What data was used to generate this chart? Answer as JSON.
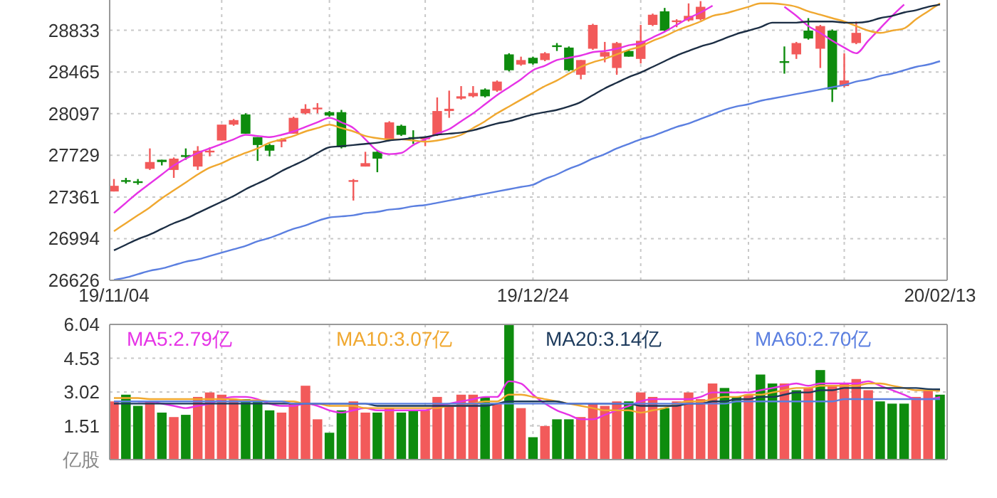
{
  "chart_data": [
    {
      "type": "candlestick",
      "categories": [
        "19/11/04",
        null,
        null,
        null,
        null,
        null,
        null,
        null,
        null,
        null,
        null,
        null,
        null,
        null,
        null,
        null,
        null,
        null,
        null,
        null,
        null,
        null,
        null,
        null,
        null,
        null,
        null,
        null,
        null,
        null,
        null,
        null,
        null,
        null,
        null,
        "19/12/24",
        null,
        null,
        null,
        null,
        null,
        null,
        null,
        null,
        null,
        null,
        null,
        null,
        null,
        null,
        null,
        null,
        null,
        null,
        null,
        null,
        null,
        null,
        null,
        null,
        null,
        null,
        null,
        null,
        null,
        null,
        null,
        null,
        null,
        "20/02/13"
      ],
      "ohlc": [
        [
          27410,
          27520,
          27410,
          27460
        ],
        [
          27510,
          27530,
          27480,
          27500
        ],
        [
          27500,
          27520,
          27470,
          27490
        ],
        [
          27610,
          27790,
          27600,
          27670
        ],
        [
          27690,
          27690,
          27640,
          27670
        ],
        [
          27600,
          27710,
          27530,
          27700
        ],
        [
          27730,
          27790,
          27690,
          27720
        ],
        [
          27630,
          27810,
          27600,
          27770
        ],
        [
          27760,
          27800,
          27720,
          27770
        ],
        [
          27860,
          28000,
          27860,
          28000
        ],
        [
          28000,
          28050,
          27990,
          28040
        ],
        [
          28090,
          28100,
          27920,
          27920
        ],
        [
          27890,
          27890,
          27680,
          27820
        ],
        [
          27820,
          27830,
          27720,
          27770
        ],
        [
          27850,
          27880,
          27800,
          27870
        ],
        [
          27920,
          28070,
          27920,
          28060
        ],
        [
          28100,
          28180,
          28090,
          28140
        ],
        [
          28140,
          28190,
          28100,
          28150
        ],
        [
          28110,
          28120,
          28070,
          28080
        ],
        [
          28110,
          28130,
          27790,
          27800
        ],
        [
          27500,
          27520,
          27330,
          27510
        ],
        [
          27630,
          27760,
          27630,
          27660
        ],
        [
          27760,
          27770,
          27580,
          27700
        ],
        [
          27870,
          28030,
          27870,
          28020
        ],
        [
          27990,
          28000,
          27900,
          27910
        ],
        [
          27890,
          27950,
          27830,
          27880
        ],
        [
          27870,
          27890,
          27810,
          27890
        ],
        [
          27910,
          28240,
          27900,
          28120
        ],
        [
          28120,
          28300,
          28060,
          28140
        ],
        [
          28230,
          28340,
          28220,
          28250
        ],
        [
          28250,
          28340,
          28240,
          28280
        ],
        [
          28310,
          28320,
          28240,
          28250
        ],
        [
          28300,
          28390,
          28290,
          28380
        ],
        [
          28620,
          28630,
          28470,
          28480
        ],
        [
          28530,
          28600,
          28520,
          28570
        ],
        [
          28590,
          28600,
          28530,
          28540
        ],
        [
          28570,
          28640,
          28560,
          28630
        ],
        [
          28700,
          28720,
          28650,
          28690
        ],
        [
          28680,
          28690,
          28470,
          28480
        ],
        [
          28440,
          28570,
          28400,
          28570
        ],
        [
          28670,
          28890,
          28660,
          28880
        ],
        [
          28600,
          28730,
          28550,
          28640
        ],
        [
          28500,
          28730,
          28440,
          28720
        ],
        [
          28650,
          28660,
          28600,
          28600
        ],
        [
          28580,
          28880,
          28540,
          28740
        ],
        [
          28880,
          28980,
          28870,
          28970
        ],
        [
          29000,
          29030,
          28820,
          28830
        ],
        [
          28910,
          28930,
          28860,
          28920
        ],
        [
          28920,
          29070,
          28910,
          28960
        ],
        [
          28930,
          29090,
          28920,
          29040
        ],
        null,
        null,
        null,
        null,
        null,
        null,
        [
          28560,
          28690,
          28450,
          28550
        ],
        [
          28620,
          28730,
          28580,
          28720
        ],
        [
          28830,
          28940,
          28750,
          28760
        ],
        [
          28670,
          28880,
          28500,
          28870
        ],
        [
          28830,
          28840,
          28200,
          28310
        ],
        [
          28340,
          28630,
          28330,
          28390
        ],
        [
          28720,
          28910,
          28710,
          28810
        ],
        null,
        null,
        null,
        null,
        null,
        null,
        null
      ],
      "colors": [
        "#f25a5a",
        "#0e8c0e",
        "#0e8c0e",
        "#f25a5a",
        "#0e8c0e",
        "#f25a5a",
        "#0e8c0e",
        "#f25a5a",
        "#f25a5a",
        "#f25a5a",
        "#f25a5a",
        "#0e8c0e",
        "#0e8c0e",
        "#0e8c0e",
        "#f25a5a",
        "#f25a5a",
        "#f25a5a",
        "#f25a5a",
        "#0e8c0e",
        "#0e8c0e",
        "#f25a5a",
        "#f25a5a",
        "#0e8c0e",
        "#f25a5a",
        "#0e8c0e",
        "#0e8c0e",
        "#f25a5a",
        "#f25a5a",
        "#f25a5a",
        "#f25a5a",
        "#f25a5a",
        "#0e8c0e",
        "#f25a5a",
        "#0e8c0e",
        "#f25a5a",
        "#0e8c0e",
        "#f25a5a",
        "#0e8c0e",
        "#0e8c0e",
        "#f25a5a",
        "#f25a5a",
        "#f25a5a",
        "#f25a5a",
        "#0e8c0e",
        "#f25a5a",
        "#f25a5a",
        "#0e8c0e",
        "#f25a5a",
        "#f25a5a",
        "#f25a5a",
        null,
        null,
        null,
        null,
        null,
        null,
        "#0e8c0e",
        "#f25a5a",
        "#0e8c0e",
        "#f25a5a",
        "#0e8c0e",
        "#f25a5a",
        "#f25a5a",
        null,
        null,
        null,
        null,
        null,
        null,
        null
      ],
      "series": [
        {
          "type": "line",
          "color": "#e633e6",
          "values": [
            27220,
            27310,
            27400,
            27480,
            27560,
            27640,
            27700,
            27750,
            27790,
            27830,
            27870,
            27910,
            27900,
            27890,
            27910,
            27940,
            27980,
            28020,
            28060,
            28020,
            27970,
            27870,
            27770,
            27740,
            27750,
            27820,
            27870,
            27920,
            27960,
            28030,
            28100,
            28180,
            28260,
            28330,
            28400,
            28480,
            28520,
            28570,
            28590,
            28610,
            28640,
            28650,
            28670,
            28700,
            28720,
            28770,
            28820,
            28880,
            28940,
            28990,
            29050,
            null,
            null,
            null,
            null,
            null,
            29040,
            28960,
            28870,
            28810,
            28740,
            28680,
            28630,
            28740,
            28850,
            28960,
            29060,
            null,
            null,
            null
          ]
        },
        {
          "type": "line",
          "color": "#f0a830",
          "values": [
            27060,
            27130,
            27200,
            27270,
            27350,
            27420,
            27490,
            27560,
            27620,
            27660,
            27710,
            27750,
            27790,
            27840,
            27870,
            27900,
            27940,
            27970,
            28000,
            27970,
            27940,
            27900,
            27880,
            27870,
            27870,
            27860,
            27850,
            27860,
            27880,
            27910,
            27970,
            28030,
            28100,
            28160,
            28220,
            28280,
            28340,
            28390,
            28450,
            28510,
            28550,
            28580,
            28620,
            28660,
            28690,
            28740,
            28780,
            28830,
            28870,
            28910,
            28960,
            28980,
            29010,
            29040,
            29070,
            29070,
            29060,
            29040,
            29000,
            28970,
            28940,
            28910,
            28870,
            28830,
            28810,
            28830,
            28850,
            28930,
            29000,
            29070
          ]
        },
        {
          "type": "line",
          "color": "#1c2e44",
          "values": [
            26890,
            26940,
            26990,
            27030,
            27080,
            27130,
            27170,
            27220,
            27270,
            27320,
            27370,
            27430,
            27480,
            27530,
            27590,
            27640,
            27690,
            27750,
            27800,
            27810,
            27820,
            27830,
            27840,
            27860,
            27870,
            27880,
            27890,
            27910,
            27920,
            27930,
            27950,
            27980,
            28010,
            28030,
            28060,
            28090,
            28110,
            28130,
            28160,
            28200,
            28260,
            28320,
            28370,
            28420,
            28460,
            28510,
            28560,
            28610,
            28650,
            28690,
            28720,
            28760,
            28800,
            28830,
            28860,
            28900,
            28900,
            28900,
            28910,
            28910,
            28910,
            28900,
            28900,
            28910,
            28940,
            28960,
            28990,
            29010,
            29040,
            29060
          ]
        },
        {
          "type": "line",
          "color": "#5b7fe0",
          "values": [
            26630,
            26650,
            26680,
            26710,
            26730,
            26760,
            26790,
            26810,
            26840,
            26870,
            26900,
            26930,
            26970,
            27000,
            27040,
            27080,
            27110,
            27150,
            27180,
            27190,
            27200,
            27220,
            27230,
            27250,
            27260,
            27280,
            27290,
            27310,
            27330,
            27350,
            27370,
            27390,
            27410,
            27430,
            27450,
            27470,
            27520,
            27560,
            27610,
            27650,
            27700,
            27740,
            27790,
            27830,
            27870,
            27900,
            27940,
            27980,
            28010,
            28050,
            28090,
            28130,
            28160,
            28180,
            28210,
            28230,
            28250,
            28270,
            28290,
            28310,
            28330,
            28350,
            28380,
            28400,
            28430,
            28450,
            28480,
            28510,
            28530,
            28560
          ]
        }
      ],
      "ylim": [
        26626,
        29100
      ],
      "yticks": [
        26626,
        26994,
        27361,
        27729,
        28097,
        28465,
        28833
      ],
      "grid": true
    },
    {
      "type": "bar",
      "categories": [
        null,
        null,
        null,
        null,
        null,
        null,
        null,
        null,
        null,
        null,
        null,
        null,
        null,
        null,
        null,
        null,
        null,
        null,
        null,
        null,
        null,
        null,
        null,
        null,
        null,
        null,
        null,
        null,
        null,
        null,
        null,
        null,
        null,
        null,
        null,
        null,
        null,
        null,
        null,
        null,
        null,
        null,
        null,
        null,
        null,
        null,
        null,
        null,
        null,
        null,
        null,
        null,
        null,
        null,
        null,
        null,
        null,
        null,
        null,
        null,
        null,
        null,
        null,
        null,
        null,
        null,
        null,
        null,
        null,
        null
      ],
      "tick_labels": "y",
      "series": [
        {
          "type": "bar",
          "values": [
            2.6,
            2.9,
            2.4,
            2.6,
            2.1,
            1.9,
            2.0,
            2.8,
            3.0,
            2.9,
            2.7,
            2.7,
            2.6,
            2.2,
            2.1,
            2.5,
            3.3,
            1.8,
            1.2,
            2.2,
            2.6,
            2.1,
            2.1,
            2.3,
            2.1,
            2.2,
            2.2,
            2.8,
            2.4,
            2.9,
            2.9,
            2.8,
            2.5,
            6.04,
            2.3,
            1.0,
            1.5,
            1.8,
            1.8,
            1.9,
            2.5,
            2.4,
            2.6,
            2.6,
            3.0,
            2.8,
            2.3,
            2.6,
            3.0,
            2.7,
            3.4,
            3.2,
            2.8,
            2.9,
            3.8,
            3.4,
            3.4,
            3.1,
            3.2,
            4.0,
            3.3,
            3.4,
            3.6,
            3.1,
            2.6,
            2.5,
            2.5,
            2.8,
            3.1,
            2.9
          ],
          "colors": [
            "#f25a5a",
            "#0e8c0e",
            "#0e8c0e",
            "#f25a5a",
            "#0e8c0e",
            "#f25a5a",
            "#0e8c0e",
            "#f25a5a",
            "#f25a5a",
            "#f25a5a",
            "#f25a5a",
            "#0e8c0e",
            "#0e8c0e",
            "#0e8c0e",
            "#f25a5a",
            "#f25a5a",
            "#f25a5a",
            "#f25a5a",
            "#0e8c0e",
            "#0e8c0e",
            "#f25a5a",
            "#f25a5a",
            "#0e8c0e",
            "#f25a5a",
            "#0e8c0e",
            "#0e8c0e",
            "#f25a5a",
            "#f25a5a",
            "#f25a5a",
            "#f25a5a",
            "#f25a5a",
            "#0e8c0e",
            "#f25a5a",
            "#0e8c0e",
            "#f25a5a",
            "#0e8c0e",
            "#f25a5a",
            "#0e8c0e",
            "#0e8c0e",
            "#f25a5a",
            "#f25a5a",
            "#f25a5a",
            "#f25a5a",
            "#0e8c0e",
            "#f25a5a",
            "#f25a5a",
            "#0e8c0e",
            "#f25a5a",
            "#f25a5a",
            "#f25a5a",
            "#f25a5a",
            "#0e8c0e",
            "#0e8c0e",
            "#f25a5a",
            "#0e8c0e",
            "#0e8c0e",
            "#f25a5a",
            "#0e8c0e",
            "#f25a5a",
            "#0e8c0e",
            "#f25a5a",
            "#f25a5a",
            "#f25a5a",
            "#f25a5a",
            "#0e8c0e",
            "#0e8c0e",
            "#0e8c0e",
            "#f25a5a",
            "#f25a5a",
            "#0e8c0e"
          ]
        },
        {
          "type": "line",
          "name": "MA5:2.79亿",
          "color": "#e633e6",
          "values": [
            null,
            null,
            2.6,
            2.6,
            2.5,
            2.4,
            2.3,
            2.4,
            2.5,
            2.7,
            2.8,
            2.8,
            2.7,
            2.5,
            2.4,
            2.4,
            2.5,
            2.4,
            2.2,
            2.1,
            2.2,
            2.3,
            2.2,
            2.2,
            2.2,
            2.2,
            2.2,
            2.4,
            2.5,
            2.6,
            2.7,
            2.8,
            2.8,
            3.5,
            3.4,
            2.9,
            2.5,
            2.2,
            2.0,
            1.8,
            1.8,
            2.0,
            2.2,
            2.4,
            2.6,
            2.7,
            2.7,
            2.7,
            2.7,
            2.8,
            3.0,
            3.0,
            3.0,
            3.0,
            3.1,
            3.2,
            3.3,
            3.4,
            3.3,
            3.4,
            3.4,
            3.4,
            3.4,
            3.5,
            3.3,
            3.1,
            2.9,
            2.7,
            2.7,
            2.79
          ]
        },
        {
          "type": "line",
          "name": "MA10:3.07亿",
          "color": "#f0a830",
          "values": [
            2.75,
            2.75,
            2.75,
            2.7,
            2.7,
            2.7,
            2.7,
            2.7,
            2.7,
            2.7,
            2.7,
            2.65,
            2.65,
            2.6,
            2.6,
            2.6,
            2.5,
            2.5,
            2.4,
            2.4,
            2.4,
            2.3,
            2.3,
            2.3,
            2.3,
            2.3,
            2.3,
            2.3,
            2.4,
            2.4,
            2.5,
            2.6,
            2.6,
            2.9,
            2.9,
            2.8,
            2.7,
            2.6,
            2.5,
            2.4,
            2.3,
            2.2,
            2.2,
            2.2,
            2.1,
            2.2,
            2.3,
            2.5,
            2.6,
            2.6,
            2.7,
            2.8,
            2.8,
            2.9,
            2.9,
            3.0,
            3.1,
            3.2,
            3.2,
            3.3,
            3.3,
            3.3,
            3.3,
            3.4,
            3.4,
            3.3,
            3.2,
            3.1,
            3.1,
            3.07
          ]
        },
        {
          "type": "line",
          "name": "MA20:3.14亿",
          "color": "#1c3a5c",
          "values": [
            2.5,
            2.5,
            2.5,
            2.5,
            2.5,
            2.5,
            2.5,
            2.5,
            2.5,
            2.5,
            2.5,
            2.5,
            2.5,
            2.5,
            2.5,
            2.5,
            2.5,
            2.5,
            2.5,
            2.5,
            2.5,
            2.5,
            2.4,
            2.4,
            2.4,
            2.4,
            2.4,
            2.4,
            2.4,
            2.4,
            2.4,
            2.4,
            2.5,
            2.6,
            2.6,
            2.6,
            2.6,
            2.6,
            2.5,
            2.5,
            2.5,
            2.5,
            2.5,
            2.5,
            2.4,
            2.4,
            2.4,
            2.4,
            2.5,
            2.5,
            2.6,
            2.6,
            2.7,
            2.7,
            2.8,
            2.8,
            2.9,
            3.0,
            3.0,
            3.1,
            3.1,
            3.2,
            3.2,
            3.2,
            3.2,
            3.2,
            3.2,
            3.2,
            3.15,
            3.14
          ]
        },
        {
          "type": "line",
          "name": "MA60:2.70亿",
          "color": "#5b7fe0",
          "values": [
            2.6,
            2.6,
            2.6,
            2.6,
            2.6,
            2.6,
            2.6,
            2.6,
            2.6,
            2.6,
            2.6,
            2.6,
            2.6,
            2.6,
            2.6,
            2.5,
            2.5,
            2.5,
            2.5,
            2.5,
            2.5,
            2.5,
            2.5,
            2.5,
            2.5,
            2.5,
            2.5,
            2.5,
            2.5,
            2.5,
            2.5,
            2.5,
            2.5,
            2.5,
            2.5,
            2.5,
            2.5,
            2.5,
            2.5,
            2.5,
            2.5,
            2.5,
            2.5,
            2.5,
            2.5,
            2.5,
            2.5,
            2.5,
            2.5,
            2.5,
            2.5,
            2.5,
            2.6,
            2.6,
            2.6,
            2.6,
            2.6,
            2.6,
            2.6,
            2.6,
            2.6,
            2.7,
            2.7,
            2.7,
            2.7,
            2.7,
            2.7,
            2.7,
            2.7,
            2.7
          ]
        }
      ],
      "ylim": [
        0,
        6.04
      ],
      "yticks": [
        {
          "value": 0,
          "label": "亿股"
        },
        1.51,
        3.02,
        4.53,
        6.04
      ],
      "legend": "top",
      "grid": true
    }
  ]
}
